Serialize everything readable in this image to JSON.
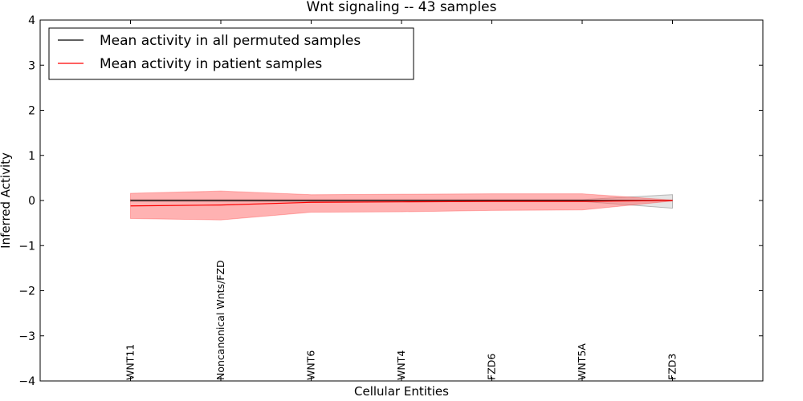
{
  "chart_data": {
    "type": "line",
    "title": "Wnt signaling -- 43 samples",
    "xlabel": "Cellular Entities",
    "ylabel": "Inferred Activity",
    "ylim": [
      -4,
      4
    ],
    "yticks": [
      "4",
      "3",
      "2",
      "1",
      "0",
      "−1",
      "−2",
      "−3",
      "−4"
    ],
    "ytick_values": [
      4,
      3,
      2,
      1,
      0,
      -1,
      -2,
      -3,
      -4
    ],
    "categories": [
      "WNT11",
      "Noncanonical Wnts/FZD",
      "WNT6",
      "WNT4",
      "FZD6",
      "WNT5A",
      "FZD3"
    ],
    "grid": false,
    "legend_position": "top-left",
    "series": [
      {
        "name": "Mean activity in all permuted samples",
        "color": "#000000",
        "values": [
          0,
          0,
          0,
          0,
          0,
          0,
          0
        ],
        "band_lower": [
          -0.02,
          -0.02,
          -0.02,
          -0.02,
          -0.02,
          -0.02,
          -0.17
        ],
        "band_upper": [
          0.02,
          0.02,
          0.02,
          0.02,
          0.02,
          0.02,
          0.13
        ],
        "band_color": "#bfbfbf"
      },
      {
        "name": "Mean activity in patient samples",
        "color": "#ff0000",
        "values": [
          -0.12,
          -0.1,
          -0.04,
          -0.03,
          -0.02,
          -0.02,
          0
        ],
        "band_lower": [
          -0.4,
          -0.43,
          -0.26,
          -0.25,
          -0.22,
          -0.21,
          -0.01
        ],
        "band_upper": [
          0.16,
          0.21,
          0.13,
          0.14,
          0.15,
          0.15,
          0.01
        ],
        "band_color": "#ff6666"
      }
    ]
  }
}
